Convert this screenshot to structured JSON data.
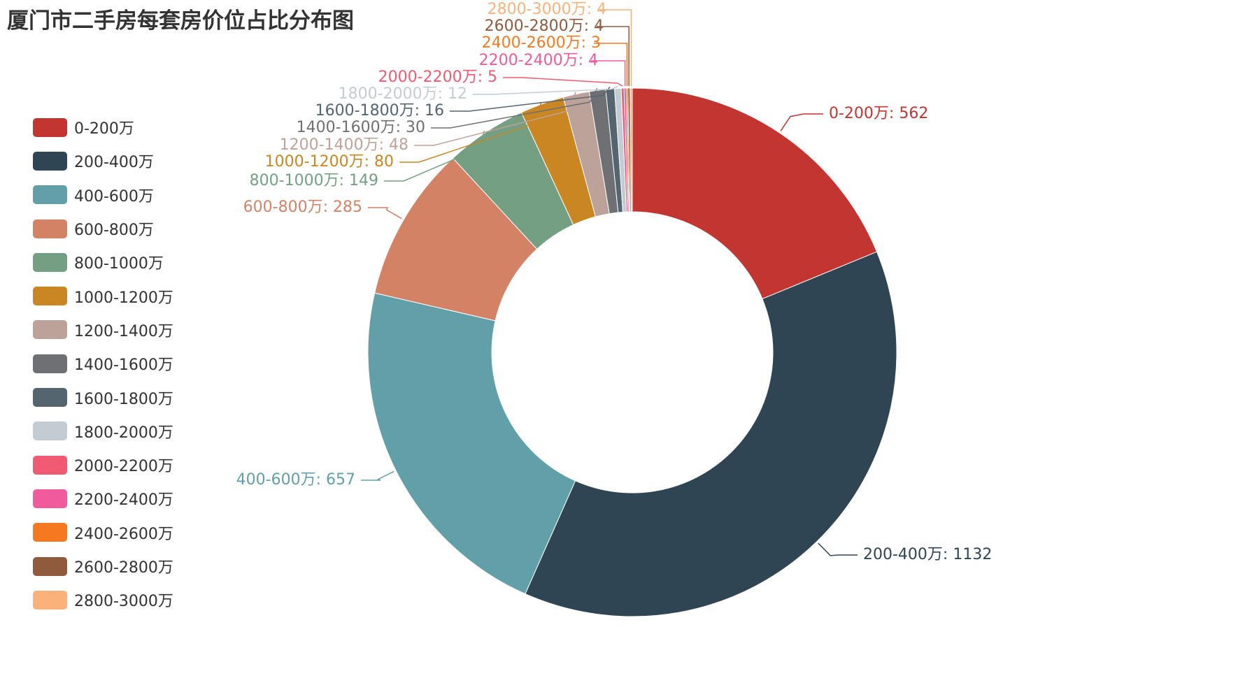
{
  "chart_data": {
    "type": "pie",
    "variant": "donut",
    "title": "厦门市二手房每套房价位占比分布图",
    "legend_position": "left",
    "categories": [
      "0-200万",
      "200-400万",
      "400-600万",
      "600-800万",
      "800-1000万",
      "1000-1200万",
      "1200-1400万",
      "1400-1600万",
      "1600-1800万",
      "1800-2000万",
      "2000-2200万",
      "2200-2400万",
      "2400-2600万",
      "2600-2800万",
      "2800-3000万"
    ],
    "values": [
      562,
      1132,
      657,
      285,
      149,
      80,
      48,
      30,
      16,
      12,
      5,
      4,
      3,
      4,
      4
    ],
    "data_labels": [
      "0-200万: 562",
      "200-400万: 1132",
      "400-600万: 657",
      "600-800万: 285",
      "800-1000万: 149",
      "1000-1200万: 80",
      "1200-1400万: 48",
      "1400-1600万: 30",
      "1600-1800万: 16",
      "1800-2000万: 12",
      "2000-2200万: 5",
      "2200-2400万: 4",
      "2400-2600万: 3",
      "2600-2800万: 4",
      "2800-3000万: 4"
    ],
    "colors": [
      "#c23531",
      "#2f4554",
      "#61a0a8",
      "#d48265",
      "#749f83",
      "#ca8622",
      "#bda29a",
      "#6e7074",
      "#546570",
      "#c4ccd3",
      "#f05b72",
      "#ef5b9c",
      "#f47920",
      "#905a3d",
      "#fab27b"
    ]
  }
}
